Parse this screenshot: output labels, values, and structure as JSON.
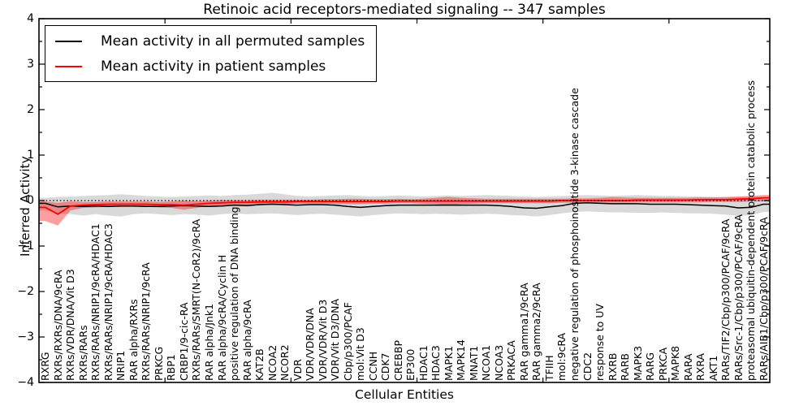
{
  "title": "Retinoic acid receptors-mediated signaling -- 347 samples",
  "legend": {
    "items": [
      {
        "label": "Mean activity in all permuted samples",
        "color": "#000000"
      },
      {
        "label": "Mean activity in patient samples",
        "color": "#ff0000"
      }
    ]
  },
  "axes": {
    "ylabel": "Inferred Activity",
    "xlabel": "Cellular Entities"
  },
  "chart_data": {
    "type": "line",
    "title": "Retinoic acid receptors-mediated signaling -- 347 samples",
    "xlabel": "Cellular Entities",
    "ylabel": "Inferred Activity",
    "ylim": [
      -4,
      4
    ],
    "yticks": [
      -4,
      -3,
      -2,
      -1,
      0,
      1,
      2,
      3,
      4
    ],
    "grid": false,
    "legend_position": "upper left",
    "zero_line": {
      "value": 0,
      "style": "dotted",
      "color": "#000000"
    },
    "categories": [
      "RXRG",
      "RXRs/RXRs/DNA/9cRA",
      "RXRs/VDR/DNA/Vit D3",
      "RXRs/RARs",
      "RXRs/RARs/NRIP1/9cRA/HDAC1",
      "RXRs/RARs/NRIP1/9cRA/HDAC3",
      "NRIP1",
      "RAR alpha/RXRs",
      "RXRs/RARs/NRIP1/9cRA",
      "PRKCG",
      "RBP1",
      "CRBP1/9-cic-RA",
      "RXRs/RARs/SMRT(N-CoR2)/9cRA",
      "RAR alpha/Jnk1",
      "RAR alpha/9cRA/Cyclin H",
      "positive regulation of DNA binding",
      "RAR alpha/9cRA",
      "KAT2B",
      "NCOA2",
      "NCOR2",
      "VDR",
      "VDR/VDR/DNA",
      "VDR/VDR/Vit D3",
      "VDR/Vit D3/DNA",
      "Cbp/p300/PCAF",
      "mol:Vit D3",
      "CCNH",
      "CDK7",
      "CREBBP",
      "EP300",
      "HDAC1",
      "HDAC3",
      "MAPK1",
      "MAPK14",
      "MNAT1",
      "NCOA1",
      "NCOA3",
      "PRKACA",
      "RAR gamma1/9cRA",
      "RAR gamma2/9cRA",
      "TFIIH",
      "mol:9cRA",
      "negative regulation of phosphoinositide 3-kinase cascade",
      "CDC2",
      "response to UV",
      "RXRB",
      "RARB",
      "MAPK3",
      "RARG",
      "PRKCA",
      "MAPK8",
      "RARA",
      "RXRA",
      "AKT1",
      "RARs/TIF2/Cbp/p300/PCAF/9cRA",
      "RARs/Src-1/Cbp/p300/PCAF/9cRA",
      "proteasomal ubiquitin-dependent protein catabolic process",
      "RARs/AIB1/Cbp/p300/PCAF/9cRA"
    ],
    "series": [
      {
        "name": "Mean activity in all permuted samples",
        "color": "#000000",
        "band_color": "rgba(0,0,0,0.15)",
        "values": [
          -0.06,
          -0.14,
          -0.12,
          -0.13,
          -0.12,
          -0.13,
          -0.12,
          -0.12,
          -0.13,
          -0.13,
          -0.12,
          -0.11,
          -0.12,
          -0.13,
          -0.12,
          -0.1,
          -0.11,
          -0.09,
          -0.08,
          -0.09,
          -0.1,
          -0.09,
          -0.09,
          -0.1,
          -0.13,
          -0.15,
          -0.13,
          -0.11,
          -0.1,
          -0.1,
          -0.1,
          -0.1,
          -0.1,
          -0.1,
          -0.1,
          -0.1,
          -0.11,
          -0.13,
          -0.16,
          -0.17,
          -0.14,
          -0.11,
          -0.06,
          -0.05,
          -0.06,
          -0.07,
          -0.07,
          -0.07,
          -0.08,
          -0.08,
          -0.08,
          -0.09,
          -0.1,
          -0.11,
          -0.12,
          -0.16,
          -0.15,
          -0.08
        ],
        "band_upper": [
          0.06,
          0.08,
          0.09,
          0.1,
          0.11,
          0.12,
          0.14,
          0.12,
          0.1,
          0.09,
          0.08,
          0.09,
          0.1,
          0.11,
          0.1,
          0.12,
          0.13,
          0.15,
          0.17,
          0.14,
          0.1,
          0.09,
          0.1,
          0.11,
          0.12,
          0.1,
          0.09,
          0.1,
          0.11,
          0.1,
          0.09,
          0.1,
          0.11,
          0.1,
          0.11,
          0.12,
          0.11,
          0.1,
          0.09,
          0.08,
          0.09,
          0.1,
          0.11,
          0.12,
          0.11,
          0.1,
          0.11,
          0.12,
          0.11,
          0.1,
          0.1,
          0.09,
          0.09,
          0.08,
          0.07,
          0.08,
          0.09,
          0.08
        ],
        "band_lower": [
          -0.22,
          -0.28,
          -0.3,
          -0.33,
          -0.3,
          -0.33,
          -0.35,
          -0.3,
          -0.28,
          -0.3,
          -0.32,
          -0.3,
          -0.31,
          -0.33,
          -0.3,
          -0.28,
          -0.3,
          -0.29,
          -0.28,
          -0.3,
          -0.32,
          -0.3,
          -0.29,
          -0.31,
          -0.33,
          -0.35,
          -0.32,
          -0.3,
          -0.28,
          -0.29,
          -0.3,
          -0.29,
          -0.3,
          -0.31,
          -0.3,
          -0.29,
          -0.3,
          -0.32,
          -0.33,
          -0.35,
          -0.32,
          -0.28,
          -0.25,
          -0.24,
          -0.25,
          -0.26,
          -0.26,
          -0.27,
          -0.27,
          -0.26,
          -0.27,
          -0.28,
          -0.28,
          -0.29,
          -0.31,
          -0.34,
          -0.32,
          -0.25
        ]
      },
      {
        "name": "Mean activity in patient samples",
        "color": "#ff0000",
        "band_color": "rgba(255,0,0,0.38)",
        "values": [
          -0.15,
          -0.3,
          -0.12,
          -0.1,
          -0.09,
          -0.08,
          -0.08,
          -0.08,
          -0.08,
          -0.09,
          -0.09,
          -0.1,
          -0.08,
          -0.06,
          -0.05,
          -0.04,
          -0.04,
          -0.03,
          -0.03,
          -0.03,
          -0.02,
          -0.02,
          -0.02,
          -0.02,
          -0.02,
          -0.02,
          -0.02,
          -0.02,
          -0.01,
          -0.01,
          -0.01,
          -0.01,
          -0.01,
          -0.01,
          -0.01,
          -0.01,
          -0.01,
          -0.01,
          -0.01,
          -0.01,
          -0.01,
          0.0,
          0.0,
          0.0,
          0.0,
          0.0,
          0.0,
          0.01,
          0.01,
          0.01,
          0.01,
          0.01,
          0.02,
          0.02,
          0.02,
          0.03,
          0.04,
          0.06
        ],
        "band_upper": [
          -0.02,
          -0.05,
          -0.02,
          -0.03,
          -0.03,
          -0.02,
          -0.02,
          -0.02,
          -0.02,
          -0.03,
          -0.02,
          0.0,
          -0.01,
          0.0,
          0.01,
          0.01,
          0.01,
          0.02,
          0.02,
          0.02,
          0.02,
          0.02,
          0.03,
          0.03,
          0.04,
          0.04,
          0.03,
          0.03,
          0.04,
          0.03,
          0.04,
          0.06,
          0.08,
          0.06,
          0.05,
          0.04,
          0.04,
          0.04,
          0.04,
          0.04,
          0.04,
          0.04,
          0.05,
          0.05,
          0.06,
          0.08,
          0.07,
          0.06,
          0.06,
          0.06,
          0.06,
          0.06,
          0.07,
          0.07,
          0.08,
          0.09,
          0.1,
          0.12
        ],
        "band_lower": [
          -0.45,
          -0.55,
          -0.22,
          -0.16,
          -0.15,
          -0.14,
          -0.14,
          -0.14,
          -0.14,
          -0.15,
          -0.16,
          -0.2,
          -0.16,
          -0.12,
          -0.11,
          -0.1,
          -0.1,
          -0.09,
          -0.08,
          -0.08,
          -0.07,
          -0.07,
          -0.07,
          -0.07,
          -0.08,
          -0.08,
          -0.07,
          -0.07,
          -0.06,
          -0.06,
          -0.07,
          -0.08,
          -0.1,
          -0.08,
          -0.07,
          -0.06,
          -0.06,
          -0.06,
          -0.06,
          -0.06,
          -0.06,
          -0.05,
          -0.05,
          -0.05,
          -0.05,
          -0.05,
          -0.05,
          -0.04,
          -0.04,
          -0.04,
          -0.04,
          -0.04,
          -0.04,
          -0.03,
          -0.03,
          -0.03,
          -0.02,
          -0.02
        ]
      }
    ]
  }
}
